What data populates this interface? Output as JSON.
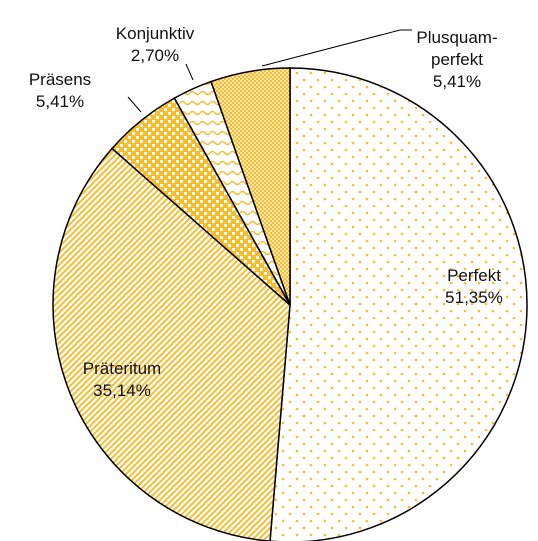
{
  "chart_data": {
    "type": "pie",
    "categories": [
      "Perfekt",
      "Präteritum",
      "Präsens",
      "Konjunktiv",
      "Plusquam-\nperfekt"
    ],
    "values": [
      51.35,
      35.14,
      5.41,
      2.7,
      5.41
    ],
    "value_labels": [
      "51,35%",
      "35,14%",
      "5,41%",
      "2,70%",
      "5,41%"
    ],
    "color": "#f7bd2f"
  }
}
